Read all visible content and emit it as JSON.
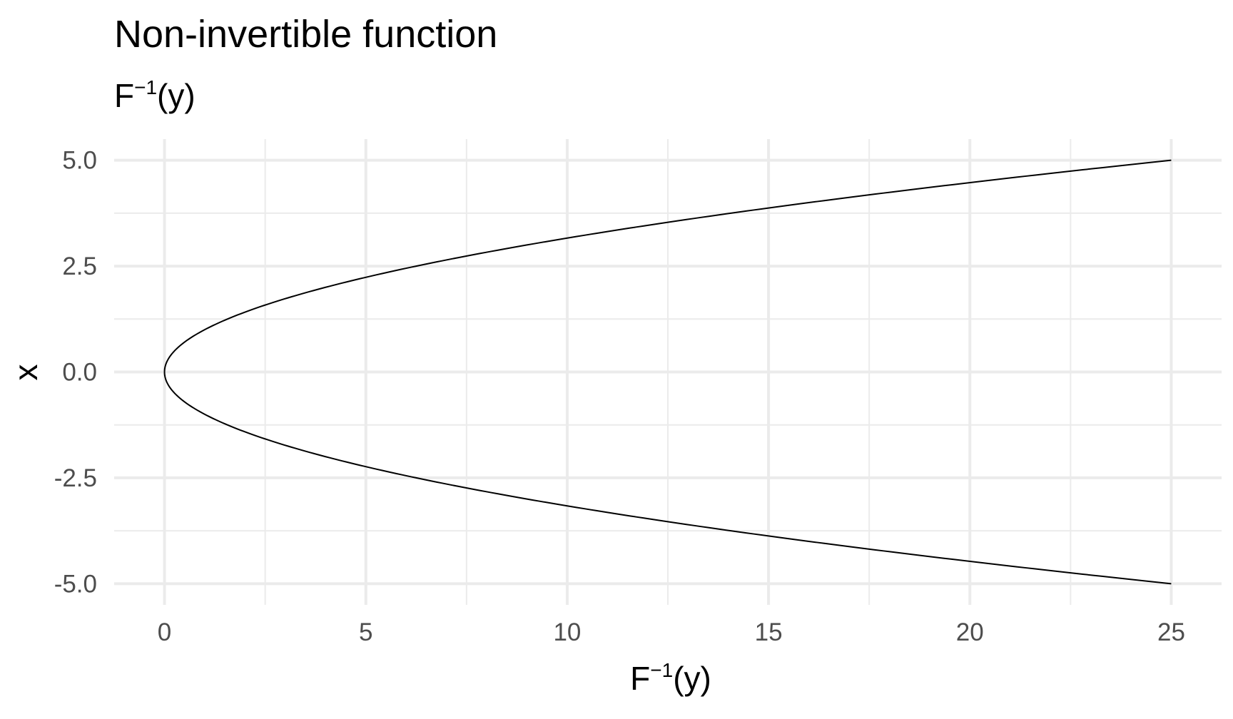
{
  "chart_data": {
    "type": "line",
    "title": "Non-invertible function",
    "subtitle": {
      "base": "F",
      "sup": "−1",
      "arg": "(y)"
    },
    "xlabel": {
      "base": "F",
      "sup": "−1",
      "arg": "(y)"
    },
    "ylabel": "x",
    "xlim": [
      -1.25,
      26.25
    ],
    "ylim": [
      -5.5,
      5.5
    ],
    "x_ticks": [
      0,
      5,
      10,
      15,
      20,
      25
    ],
    "x_tick_labels": [
      "0",
      "5",
      "10",
      "15",
      "20",
      "25"
    ],
    "x_minor_ticks": [
      2.5,
      7.5,
      12.5,
      17.5,
      22.5
    ],
    "y_ticks": [
      5.0,
      2.5,
      0.0,
      -2.5,
      -5.0
    ],
    "y_tick_labels": [
      "5.0",
      "2.5",
      "0.0",
      "-2.5",
      "-5.0"
    ],
    "y_minor_ticks": [
      3.75,
      1.25,
      -1.25,
      -3.75
    ],
    "grid": true,
    "series": [
      {
        "color": "#000000",
        "x": [
          25,
          20.25,
          16,
          12.25,
          9,
          6.25,
          4,
          2.25,
          1,
          0.25,
          0,
          0.25,
          1,
          2.25,
          4,
          6.25,
          9,
          12.25,
          16,
          20.25,
          25
        ],
        "y": [
          5,
          4.5,
          4,
          3.5,
          3,
          2.5,
          2,
          1.5,
          1,
          0.5,
          0,
          -0.5,
          -1,
          -1.5,
          -2,
          -2.5,
          -3,
          -3.5,
          -4,
          -4.5,
          -5
        ]
      }
    ]
  }
}
